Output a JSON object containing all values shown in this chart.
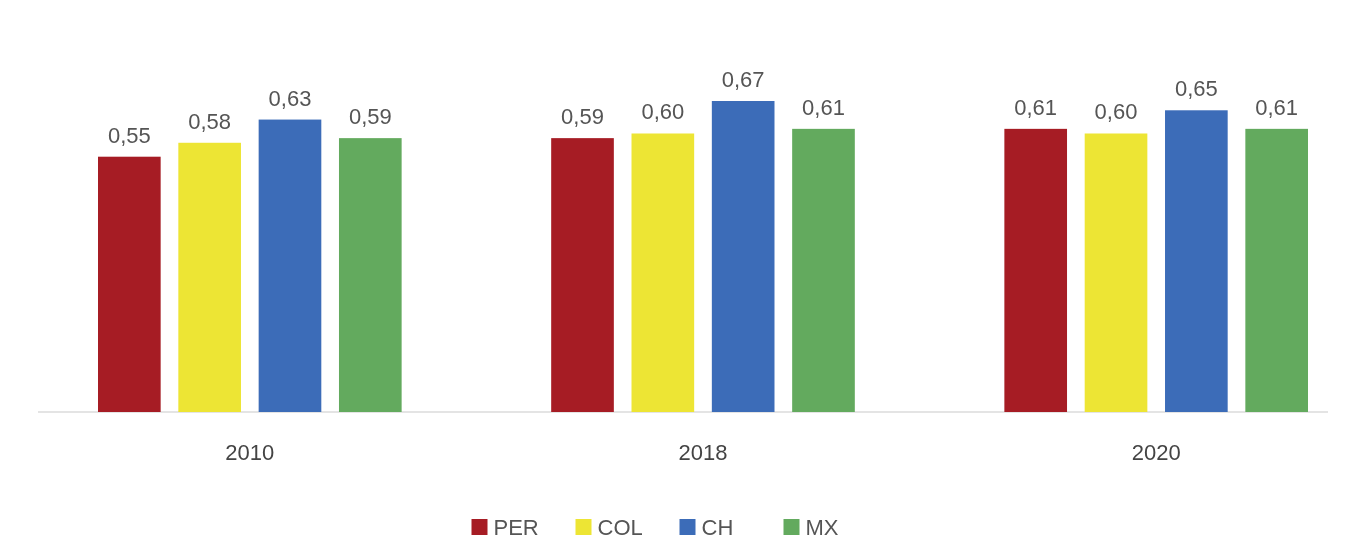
{
  "chart_data": {
    "type": "bar",
    "categories": [
      "2010",
      "2018",
      "2020"
    ],
    "series": [
      {
        "name": "PER",
        "color": "#a61c24",
        "values": [
          0.55,
          0.59,
          0.61
        ],
        "value_labels": [
          "0,55",
          "0,59",
          "0,61"
        ]
      },
      {
        "name": "COL",
        "color": "#ede534",
        "values": [
          0.58,
          0.6,
          0.6
        ],
        "value_labels": [
          "0,58",
          "0,60",
          "0,60"
        ]
      },
      {
        "name": "CH",
        "color": "#3c6cb8",
        "values": [
          0.63,
          0.67,
          0.65
        ],
        "value_labels": [
          "0,63",
          "0,67",
          "0,65"
        ]
      },
      {
        "name": "MX",
        "color": "#63aa5e",
        "values": [
          0.59,
          0.61,
          0.61
        ],
        "value_labels": [
          "0,59",
          "0,61",
          "0,61"
        ]
      }
    ],
    "legend": "bottom"
  }
}
